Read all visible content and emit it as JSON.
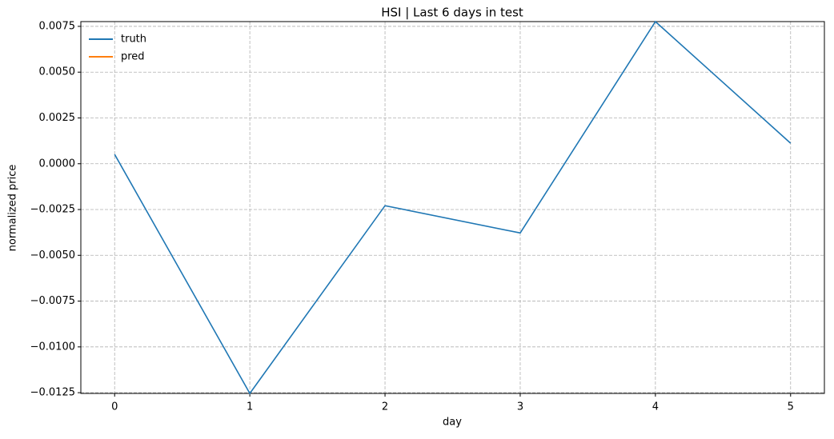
{
  "chart_data": {
    "type": "line",
    "title": "HSI | Last 6 days in test",
    "x_label": "day",
    "y_label": "normalized price",
    "x": [
      0,
      1,
      2,
      3,
      4,
      5
    ],
    "series": [
      {
        "name": "truth",
        "color": "#1f77b4",
        "values": [
          0.00051,
          -0.01254,
          -0.00229,
          -0.00378,
          0.00776,
          0.00112
        ]
      },
      {
        "name": "pred",
        "color": "#ff7f0e",
        "values": [
          null,
          null,
          null,
          null,
          null,
          null
        ]
      }
    ],
    "xlim": [
      -0.25,
      5.25
    ],
    "xticks": [
      0,
      1,
      2,
      3,
      4,
      5
    ],
    "ylim": [
      -0.01254,
      0.00776
    ],
    "yticks": [
      {
        "value": -0.0125,
        "label": "−0.0125"
      },
      {
        "value": -0.01,
        "label": "−0.0100"
      },
      {
        "value": -0.0075,
        "label": "−0.0075"
      },
      {
        "value": -0.005,
        "label": "−0.0050"
      },
      {
        "value": -0.0025,
        "label": "−0.0025"
      },
      {
        "value": 0,
        "label": "0.0000"
      },
      {
        "value": 0.0025,
        "label": "0.0025"
      },
      {
        "value": 0.005,
        "label": "0.0050"
      },
      {
        "value": 0.0075,
        "label": "0.0075"
      }
    ],
    "grid": true,
    "legend": "upper left"
  }
}
